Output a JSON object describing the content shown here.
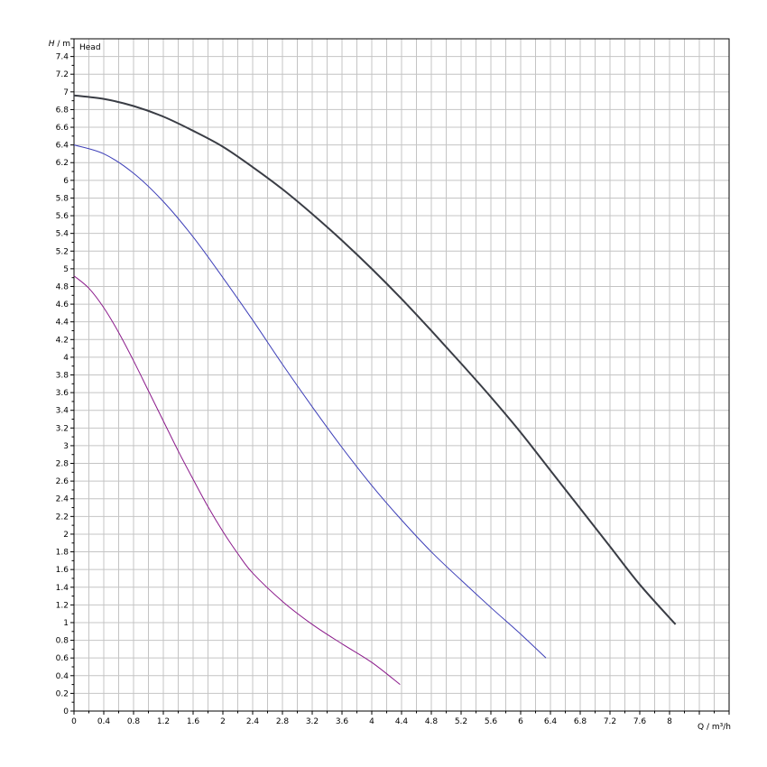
{
  "chart_data": {
    "type": "line",
    "title": "",
    "legend_label": "Head",
    "xlabel": "Q / m³/h",
    "ylabel": "H / m",
    "xlim": [
      0,
      8.8
    ],
    "ylim": [
      0,
      7.6
    ],
    "grid": true,
    "x_ticks": [
      "0",
      "0.4",
      "0.8",
      "1.2",
      "1.6",
      "2",
      "2.4",
      "2.8",
      "3.2",
      "3.6",
      "4",
      "4.4",
      "4.8",
      "5.2",
      "5.6",
      "6",
      "6.4",
      "6.8",
      "7.2",
      "7.6",
      "8"
    ],
    "y_ticks": [
      "0",
      "0.2",
      "0.4",
      "0.6",
      "0.8",
      "1",
      "1.2",
      "1.4",
      "1.6",
      "1.8",
      "2",
      "2.2",
      "2.4",
      "2.6",
      "2.8",
      "3",
      "3.2",
      "3.4",
      "3.6",
      "3.8",
      "4",
      "4.2",
      "4.4",
      "4.6",
      "4.8",
      "5",
      "5.2",
      "5.4",
      "5.6",
      "5.8",
      "6",
      "6.2",
      "6.4",
      "6.6",
      "6.8",
      "7",
      "7.2",
      "7.4"
    ],
    "series": [
      {
        "color": "#3a3d45",
        "values": [
          [
            0,
            6.96
          ],
          [
            0.4,
            6.92
          ],
          [
            0.8,
            6.84
          ],
          [
            1.2,
            6.72
          ],
          [
            1.6,
            6.56
          ],
          [
            2.0,
            6.38
          ],
          [
            2.4,
            6.15
          ],
          [
            2.8,
            5.9
          ],
          [
            3.2,
            5.62
          ],
          [
            3.6,
            5.32
          ],
          [
            4.0,
            5.0
          ],
          [
            4.4,
            4.66
          ],
          [
            4.8,
            4.3
          ],
          [
            5.2,
            3.93
          ],
          [
            5.6,
            3.55
          ],
          [
            6.0,
            3.15
          ],
          [
            6.4,
            2.72
          ],
          [
            6.8,
            2.29
          ],
          [
            7.2,
            1.86
          ],
          [
            7.6,
            1.43
          ],
          [
            8.08,
            0.98
          ]
        ]
      },
      {
        "color": "#3d3fb8",
        "values": [
          [
            0,
            6.4
          ],
          [
            0.4,
            6.3
          ],
          [
            0.8,
            6.08
          ],
          [
            1.2,
            5.76
          ],
          [
            1.6,
            5.36
          ],
          [
            2.0,
            4.9
          ],
          [
            2.4,
            4.42
          ],
          [
            2.8,
            3.92
          ],
          [
            3.2,
            3.44
          ],
          [
            3.6,
            2.98
          ],
          [
            4.0,
            2.55
          ],
          [
            4.4,
            2.16
          ],
          [
            4.8,
            1.8
          ],
          [
            5.2,
            1.48
          ],
          [
            5.6,
            1.17
          ],
          [
            6.0,
            0.87
          ],
          [
            6.34,
            0.6
          ]
        ]
      },
      {
        "color": "#8b1a8b",
        "values": [
          [
            0,
            4.92
          ],
          [
            0.2,
            4.78
          ],
          [
            0.4,
            4.56
          ],
          [
            0.6,
            4.28
          ],
          [
            0.8,
            3.96
          ],
          [
            1.0,
            3.62
          ],
          [
            1.2,
            3.28
          ],
          [
            1.4,
            2.94
          ],
          [
            1.6,
            2.62
          ],
          [
            1.8,
            2.31
          ],
          [
            2.0,
            2.03
          ],
          [
            2.2,
            1.78
          ],
          [
            2.4,
            1.56
          ],
          [
            2.8,
            1.24
          ],
          [
            3.2,
            0.98
          ],
          [
            3.6,
            0.76
          ],
          [
            4.0,
            0.55
          ],
          [
            4.38,
            0.3
          ]
        ]
      }
    ]
  }
}
